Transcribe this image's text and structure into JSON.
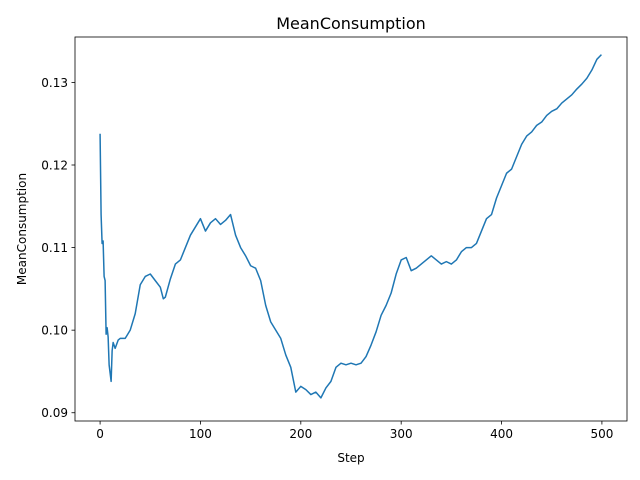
{
  "chart_data": {
    "type": "line",
    "title": "MeanConsumption",
    "xlabel": "Step",
    "ylabel": "MeanConsumption",
    "xlim": [
      -25,
      525
    ],
    "ylim": [
      0.089,
      0.1355
    ],
    "grid": false,
    "legend": "none",
    "x_ticks": [
      {
        "value": 0,
        "label": "0"
      },
      {
        "value": 100,
        "label": "100"
      },
      {
        "value": 200,
        "label": "200"
      },
      {
        "value": 300,
        "label": "300"
      },
      {
        "value": 400,
        "label": "400"
      },
      {
        "value": 500,
        "label": "500"
      }
    ],
    "y_ticks": [
      {
        "value": 0.09,
        "label": "0.09"
      },
      {
        "value": 0.1,
        "label": "0.10"
      },
      {
        "value": 0.11,
        "label": "0.11"
      },
      {
        "value": 0.12,
        "label": "0.12"
      },
      {
        "value": 0.13,
        "label": "0.13"
      }
    ],
    "series": [
      {
        "name": "MeanConsumption",
        "color": "#1f77b4",
        "x": [
          0,
          1,
          2,
          3,
          4,
          5,
          6,
          7,
          8,
          9,
          10,
          11,
          12,
          13,
          15,
          18,
          20,
          25,
          30,
          35,
          40,
          45,
          50,
          55,
          60,
          63,
          65,
          70,
          75,
          80,
          85,
          90,
          95,
          100,
          105,
          110,
          115,
          120,
          125,
          130,
          135,
          140,
          145,
          150,
          155,
          160,
          165,
          170,
          175,
          180,
          185,
          190,
          195,
          200,
          205,
          210,
          215,
          220,
          225,
          230,
          235,
          240,
          245,
          250,
          255,
          260,
          265,
          270,
          275,
          280,
          285,
          290,
          295,
          300,
          305,
          310,
          315,
          320,
          325,
          330,
          335,
          340,
          345,
          350,
          355,
          360,
          365,
          370,
          375,
          380,
          385,
          390,
          395,
          400,
          405,
          410,
          415,
          420,
          425,
          430,
          435,
          440,
          445,
          450,
          455,
          460,
          465,
          470,
          475,
          480,
          485,
          490,
          495,
          499
        ],
        "y": [
          0.1237,
          0.114,
          0.1105,
          0.1108,
          0.1065,
          0.106,
          0.0995,
          0.1003,
          0.0992,
          0.0958,
          0.0948,
          0.0938,
          0.0975,
          0.0985,
          0.0978,
          0.0988,
          0.099,
          0.099,
          0.1,
          0.102,
          0.1055,
          0.1065,
          0.1068,
          0.106,
          0.1052,
          0.1038,
          0.104,
          0.1062,
          0.108,
          0.1085,
          0.11,
          0.1115,
          0.1125,
          0.1135,
          0.112,
          0.113,
          0.1135,
          0.1128,
          0.1133,
          0.114,
          0.1115,
          0.11,
          0.109,
          0.1078,
          0.1075,
          0.106,
          0.103,
          0.101,
          0.1,
          0.099,
          0.097,
          0.0955,
          0.0925,
          0.0932,
          0.0928,
          0.0922,
          0.0925,
          0.0918,
          0.093,
          0.0938,
          0.0955,
          0.096,
          0.0958,
          0.096,
          0.0958,
          0.096,
          0.0968,
          0.0982,
          0.0998,
          0.1018,
          0.103,
          0.1045,
          0.1068,
          0.1085,
          0.1088,
          0.1072,
          0.1075,
          0.108,
          0.1085,
          0.109,
          0.1085,
          0.108,
          0.1083,
          0.108,
          0.1085,
          0.1095,
          0.11,
          0.11,
          0.1105,
          0.112,
          0.1135,
          0.114,
          0.116,
          0.1175,
          0.119,
          0.1195,
          0.121,
          0.1225,
          0.1235,
          0.124,
          0.1248,
          0.1252,
          0.126,
          0.1265,
          0.1268,
          0.1275,
          0.128,
          0.1285,
          0.1292,
          0.1298,
          0.1305,
          0.1315,
          0.1328,
          0.1333
        ]
      }
    ]
  }
}
